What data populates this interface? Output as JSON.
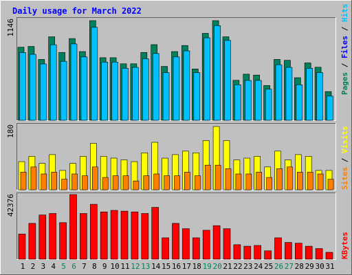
{
  "title": "Daily usage for March 2022",
  "colors": {
    "title": "#0000ff",
    "background": "#c0c0c0",
    "pages": "#00805c",
    "files": "#0000ff",
    "hits": "#00c0ff",
    "sites": "#ff8000",
    "visits": "#ffff00",
    "kbytes": "#ff0000",
    "weekend_label": "#00805c",
    "weekday_label": "#000000"
  },
  "chart_data": [
    {
      "type": "bar",
      "title": "Daily usage for March 2022",
      "ymax_label": "1146",
      "ylim": [
        0,
        1146
      ],
      "legend": [
        {
          "name": "Pages",
          "color": "#00805c"
        },
        {
          "name": "Files",
          "color": "#0000ff"
        },
        {
          "name": "Hits",
          "color": "#00c0ff"
        }
      ],
      "categories": [
        "1",
        "2",
        "3",
        "4",
        "5",
        "6",
        "7",
        "8",
        "9",
        "10",
        "11",
        "12",
        "13",
        "14",
        "15",
        "16",
        "17",
        "18",
        "19",
        "20",
        "21",
        "22",
        "23",
        "24",
        "25",
        "26",
        "27",
        "28",
        "29",
        "30",
        "31"
      ],
      "series": [
        {
          "name": "Pages",
          "color": "#00805c",
          "values": [
            840,
            850,
            700,
            960,
            780,
            940,
            790,
            1146,
            720,
            720,
            650,
            650,
            780,
            870,
            620,
            790,
            860,
            590,
            1000,
            1146,
            960,
            460,
            530,
            520,
            400,
            700,
            690,
            490,
            660,
            610,
            330
          ]
        },
        {
          "name": "Hits",
          "color": "#00c0ff",
          "values": [
            810,
            790,
            680,
            900,
            710,
            910,
            760,
            1100,
            700,
            700,
            630,
            640,
            740,
            800,
            580,
            760,
            830,
            580,
            980,
            1120,
            950,
            440,
            490,
            490,
            390,
            670,
            640,
            440,
            630,
            580,
            310
          ]
        }
      ]
    },
    {
      "type": "bar",
      "ymax_label": "180",
      "ylim": [
        0,
        180
      ],
      "legend": [
        {
          "name": "Sites",
          "color": "#ff8000"
        },
        {
          "name": "Visits",
          "color": "#ffff00"
        }
      ],
      "categories": [
        "1",
        "2",
        "3",
        "4",
        "5",
        "6",
        "7",
        "8",
        "9",
        "10",
        "11",
        "12",
        "13",
        "14",
        "15",
        "16",
        "17",
        "18",
        "19",
        "20",
        "21",
        "22",
        "23",
        "24",
        "25",
        "26",
        "27",
        "28",
        "29",
        "30",
        "31"
      ],
      "series": [
        {
          "name": "Visits",
          "color": "#ffff00",
          "values": [
            80,
            95,
            75,
            100,
            55,
            75,
            95,
            132,
            95,
            90,
            85,
            80,
            105,
            135,
            90,
            100,
            110,
            105,
            140,
            180,
            140,
            85,
            90,
            95,
            65,
            110,
            85,
            100,
            95,
            55,
            55
          ]
        },
        {
          "name": "Sites",
          "color": "#ff8000",
          "values": [
            50,
            65,
            45,
            50,
            30,
            45,
            40,
            65,
            35,
            40,
            40,
            25,
            40,
            45,
            40,
            40,
            50,
            40,
            70,
            70,
            60,
            45,
            45,
            50,
            35,
            60,
            65,
            50,
            50,
            45,
            30
          ]
        }
      ]
    },
    {
      "type": "bar",
      "ymax_label": "42376",
      "ylim": [
        0,
        42376
      ],
      "legend": [
        {
          "name": "KBytes",
          "color": "#ff0000"
        }
      ],
      "categories": [
        "1",
        "2",
        "3",
        "4",
        "5",
        "6",
        "7",
        "8",
        "9",
        "10",
        "11",
        "12",
        "13",
        "14",
        "15",
        "16",
        "17",
        "18",
        "19",
        "20",
        "21",
        "22",
        "23",
        "24",
        "25",
        "26",
        "27",
        "28",
        "29",
        "30",
        "31"
      ],
      "series": [
        {
          "name": "KBytes",
          "color": "#ff0000",
          "values": [
            16500,
            23500,
            29000,
            30000,
            24000,
            42376,
            30000,
            36000,
            31000,
            32000,
            31500,
            31000,
            30000,
            34000,
            14000,
            23500,
            20000,
            14000,
            19000,
            22000,
            20000,
            9500,
            8500,
            9000,
            5500,
            14000,
            11000,
            10500,
            8500,
            7000,
            4500
          ]
        }
      ]
    }
  ]
}
